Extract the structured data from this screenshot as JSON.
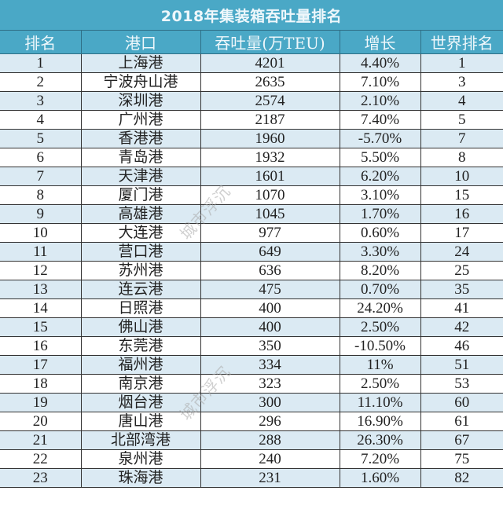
{
  "title": "2018年集装箱吞吐量排名",
  "headers": [
    "排名",
    "港口",
    "吞吐量(万TEU)",
    "增长",
    "世界排名"
  ],
  "rows": [
    {
      "rank": "1",
      "port": "上海港",
      "throughput": "4201",
      "growth": "4.40%",
      "world_rank": "1"
    },
    {
      "rank": "2",
      "port": "宁波舟山港",
      "throughput": "2635",
      "growth": "7.10%",
      "world_rank": "3"
    },
    {
      "rank": "3",
      "port": "深圳港",
      "throughput": "2574",
      "growth": "2.10%",
      "world_rank": "4"
    },
    {
      "rank": "4",
      "port": "广州港",
      "throughput": "2187",
      "growth": "7.40%",
      "world_rank": "5"
    },
    {
      "rank": "5",
      "port": "香港港",
      "throughput": "1960",
      "growth": "-5.70%",
      "world_rank": "7"
    },
    {
      "rank": "6",
      "port": "青岛港",
      "throughput": "1932",
      "growth": "5.50%",
      "world_rank": "8"
    },
    {
      "rank": "7",
      "port": "天津港",
      "throughput": "1601",
      "growth": "6.20%",
      "world_rank": "10"
    },
    {
      "rank": "8",
      "port": "厦门港",
      "throughput": "1070",
      "growth": "3.10%",
      "world_rank": "15"
    },
    {
      "rank": "9",
      "port": "高雄港",
      "throughput": "1045",
      "growth": "1.70%",
      "world_rank": "16"
    },
    {
      "rank": "10",
      "port": "大连港",
      "throughput": "977",
      "growth": "0.60%",
      "world_rank": "17"
    },
    {
      "rank": "11",
      "port": "营口港",
      "throughput": "649",
      "growth": "3.30%",
      "world_rank": "24"
    },
    {
      "rank": "12",
      "port": "苏州港",
      "throughput": "636",
      "growth": "8.20%",
      "world_rank": "25"
    },
    {
      "rank": "13",
      "port": "连云港",
      "throughput": "475",
      "growth": "0.70%",
      "world_rank": "35"
    },
    {
      "rank": "14",
      "port": "日照港",
      "throughput": "400",
      "growth": "24.20%",
      "world_rank": "41"
    },
    {
      "rank": "15",
      "port": "佛山港",
      "throughput": "400",
      "growth": "2.50%",
      "world_rank": "42"
    },
    {
      "rank": "16",
      "port": "东莞港",
      "throughput": "350",
      "growth": "-10.50%",
      "world_rank": "46"
    },
    {
      "rank": "17",
      "port": "福州港",
      "throughput": "334",
      "growth": "11%",
      "world_rank": "51"
    },
    {
      "rank": "18",
      "port": "南京港",
      "throughput": "323",
      "growth": "2.50%",
      "world_rank": "53"
    },
    {
      "rank": "19",
      "port": "烟台港",
      "throughput": "300",
      "growth": "11.10%",
      "world_rank": "60"
    },
    {
      "rank": "20",
      "port": "唐山港",
      "throughput": "296",
      "growth": "16.90%",
      "world_rank": "61"
    },
    {
      "rank": "21",
      "port": "北部湾港",
      "throughput": "288",
      "growth": "26.30%",
      "world_rank": "67"
    },
    {
      "rank": "22",
      "port": "泉州港",
      "throughput": "240",
      "growth": "7.20%",
      "world_rank": "75"
    },
    {
      "rank": "23",
      "port": "珠海港",
      "throughput": "231",
      "growth": "1.60%",
      "world_rank": "82"
    }
  ],
  "watermark": "城市浮沉",
  "colors": {
    "header_bg": "#4aa8c6",
    "row_alt_bg": "#dbeaf3",
    "row_bg": "#ffffff"
  }
}
